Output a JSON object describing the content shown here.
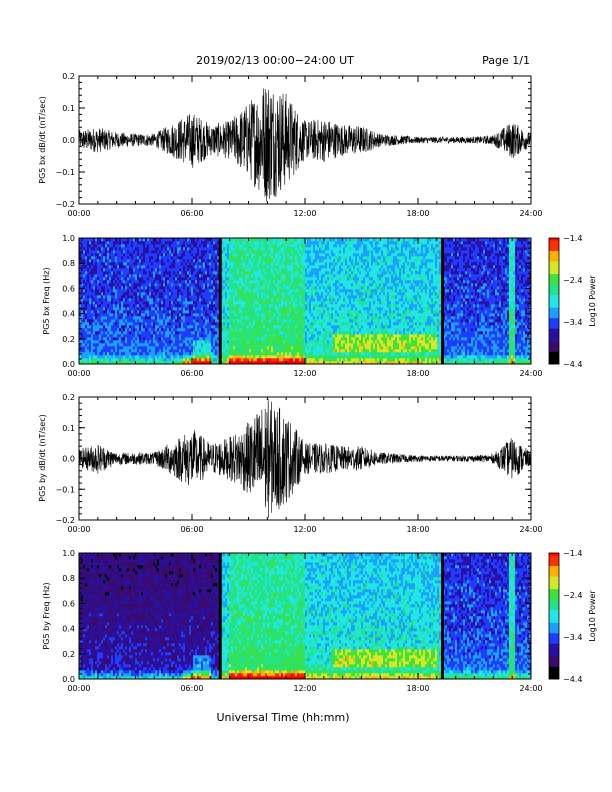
{
  "header": {
    "title": "2019/02/13  00:00−24:00 UT",
    "page": "Page 1/1"
  },
  "xlabel": "Universal Time (hh:mm)",
  "chart_data": [
    {
      "type": "line",
      "ylabel": "PG5 bx dB/dt (nT/sec)",
      "xlim": [
        0,
        24
      ],
      "ylim": [
        -0.2,
        0.2
      ],
      "xticks": [
        "00:00",
        "06:00",
        "12:00",
        "18:00",
        "24:00"
      ],
      "yticks": [
        "0.2",
        "0.1",
        "0.0",
        "−0.1",
        "−0.2"
      ],
      "activity_hours": [
        0,
        1,
        2,
        3,
        4,
        5,
        6,
        7,
        8,
        9,
        10,
        11,
        12,
        13,
        14,
        15,
        16,
        17,
        18,
        19,
        20,
        21,
        22,
        23,
        24
      ],
      "activity_amplitude": [
        0.03,
        0.04,
        0.025,
        0.02,
        0.02,
        0.055,
        0.09,
        0.05,
        0.06,
        0.12,
        0.2,
        0.15,
        0.06,
        0.07,
        0.05,
        0.045,
        0.02,
        0.015,
        0.01,
        0.01,
        0.01,
        0.01,
        0.015,
        0.06,
        0.02
      ]
    },
    {
      "type": "heatmap",
      "ylabel": "PG5 bx Freq (Hz)",
      "xlim": [
        0,
        24
      ],
      "ylim": [
        0,
        1
      ],
      "xticks": [
        "00:00",
        "06:00",
        "12:00",
        "18:00",
        "24:00"
      ],
      "yticks": [
        "1.0",
        "0.8",
        "0.6",
        "0.4",
        "0.2",
        "0.0"
      ],
      "colorbar_label": "Log10 Power",
      "colorbar_ticks": [
        "−1.4",
        "−2.4",
        "−3.4",
        "−4.4"
      ],
      "colorbar_range": [
        -4.4,
        -1.4
      ],
      "data_gap_hours": [
        7.5,
        19.3
      ],
      "colors": [
        "#000000",
        "#3a0b6a",
        "#2a10a0",
        "#1f3cff",
        "#1aa0ff",
        "#22e6e6",
        "#22e38a",
        "#3ee23a",
        "#d6e628",
        "#ffb000",
        "#ff3000",
        "#ff0000"
      ]
    },
    {
      "type": "line",
      "ylabel": "PG5 by dB/dt (nT/sec)",
      "xlim": [
        0,
        24
      ],
      "ylim": [
        -0.2,
        0.2
      ],
      "xticks": [
        "00:00",
        "06:00",
        "12:00",
        "18:00",
        "24:00"
      ],
      "yticks": [
        "0.2",
        "0.1",
        "0.0",
        "−0.1",
        "−0.2"
      ],
      "activity_hours": [
        0,
        1,
        2,
        3,
        4,
        5,
        6,
        7,
        8,
        9,
        10,
        11,
        12,
        13,
        14,
        15,
        16,
        17,
        18,
        19,
        20,
        21,
        22,
        23,
        24
      ],
      "activity_amplitude": [
        0.03,
        0.05,
        0.02,
        0.02,
        0.02,
        0.06,
        0.1,
        0.05,
        0.07,
        0.12,
        0.2,
        0.15,
        0.05,
        0.05,
        0.04,
        0.04,
        0.02,
        0.015,
        0.01,
        0.01,
        0.01,
        0.01,
        0.015,
        0.07,
        0.02
      ]
    },
    {
      "type": "heatmap",
      "ylabel": "PG5 by Freq (Hz)",
      "xlim": [
        0,
        24
      ],
      "ylim": [
        0,
        1
      ],
      "xticks": [
        "00:00",
        "06:00",
        "12:00",
        "18:00",
        "24:00"
      ],
      "yticks": [
        "1.0",
        "0.8",
        "0.6",
        "0.4",
        "0.2",
        "0.0"
      ],
      "colorbar_label": "Log10 Power",
      "colorbar_ticks": [
        "−1.4",
        "−2.4",
        "−3.4",
        "−4.4"
      ],
      "colorbar_range": [
        -4.4,
        -1.4
      ],
      "data_gap_hours": [
        7.5,
        19.3
      ],
      "colors": [
        "#000000",
        "#3a0b6a",
        "#2a10a0",
        "#1f3cff",
        "#1aa0ff",
        "#22e6e6",
        "#22e38a",
        "#3ee23a",
        "#d6e628",
        "#ffb000",
        "#ff3000",
        "#ff0000"
      ]
    }
  ]
}
